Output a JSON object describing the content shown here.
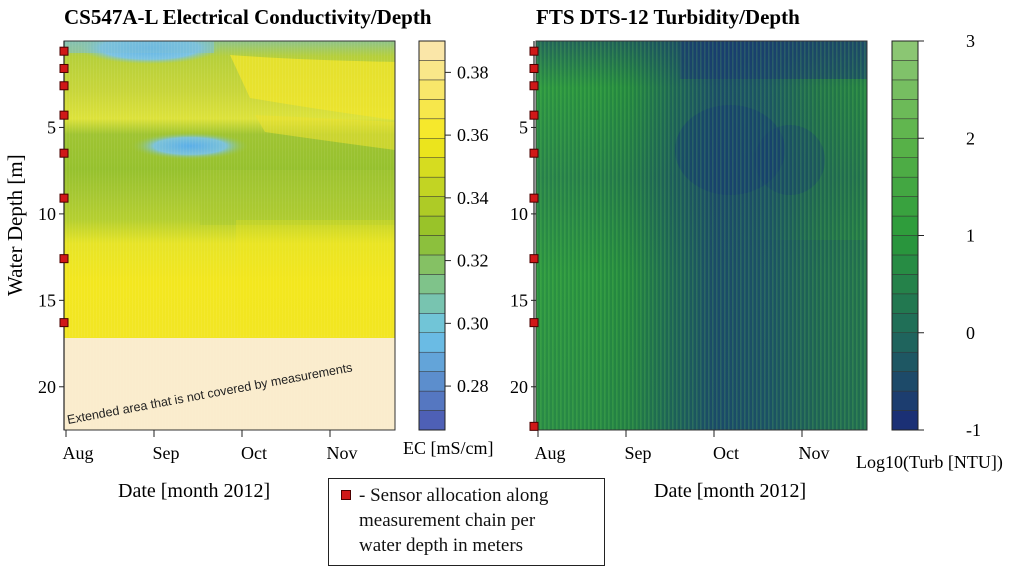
{
  "figure": {
    "left_title": "CS547A-L Electrical Conductivity/Depth",
    "right_title": "FTS DTS-12 Turbidity/Depth",
    "ylabel": "Water Depth [m]",
    "left_xlabel": "Date [month 2012]",
    "right_xlabel": "Date [month 2012]",
    "left_colorbar_label": "EC [mS/cm]",
    "right_colorbar_label": "Log10(Turb [NTU])",
    "annotation": "Extended area that is not covered by measurements",
    "legend_text": "- Sensor allocation along measurement chain per water depth in meters",
    "legend_lines": [
      "- Sensor allocation along",
      "measurement chain per",
      "water depth in meters"
    ],
    "colors": {
      "sensor_marker": "#d01818",
      "ec_low": "#4a55b0",
      "ec_mid": "#6ec6ea",
      "ec_green": "#8fbf2a",
      "ec_high": "#f5e81c",
      "turb_low": "#1a2a78",
      "turb_mid": "#2a9a3a",
      "turb_high": "#90c878"
    }
  },
  "chart_data": [
    {
      "type": "heatmap",
      "title": "CS547A-L Electrical Conductivity/Depth",
      "xlabel": "Date [month 2012]",
      "ylabel": "Water Depth [m]",
      "x_ticks": [
        "Aug",
        "Sep",
        "Oct",
        "Nov"
      ],
      "y_ticks": [
        5,
        10,
        15,
        20
      ],
      "ylim": [
        22.5,
        0
      ],
      "colorbar": {
        "label": "EC [mS/cm]",
        "min": 0.266,
        "max": 0.39,
        "ticks": [
          "0.28",
          "0.30",
          "0.32",
          "0.34",
          "0.36",
          "0.38"
        ],
        "colormap": [
          "#4a55b0",
          "#6ec6ea",
          "#8fbf2a",
          "#f5e81c",
          "#fbe6b8"
        ],
        "steps": 20
      },
      "sensor_depths": [
        0.3,
        1.3,
        2.3,
        4.0,
        6.2,
        8.8,
        12.3,
        16.0
      ],
      "unmeasured_below_depth": 16.8,
      "annotation": "Extended area that is not covered by measurements",
      "layers": [
        {
          "depth_range": [
            0,
            1.2
          ],
          "ec_mS_cm": 0.3
        },
        {
          "depth_range": [
            1.2,
            5.0
          ],
          "ec_mS_cm": 0.33
        },
        {
          "depth_range": [
            5.0,
            5.6
          ],
          "ec_mS_cm": 0.3
        },
        {
          "depth_range": [
            5.6,
            9.0
          ],
          "ec_mS_cm": 0.33
        },
        {
          "depth_range": [
            9.0,
            16.8
          ],
          "ec_mS_cm": 0.36
        }
      ]
    },
    {
      "type": "heatmap",
      "title": "FTS DTS-12 Turbidity/Depth",
      "xlabel": "Date [month 2012]",
      "ylabel": "Water Depth [m]",
      "x_ticks": [
        "Aug",
        "Sep",
        "Oct",
        "Nov"
      ],
      "y_ticks": [
        5,
        10,
        15,
        20
      ],
      "ylim": [
        22.5,
        0
      ],
      "colorbar": {
        "label": "Log10(Turb [NTU])",
        "min": -1,
        "max": 3,
        "ticks": [
          "-1",
          "0",
          "1",
          "2",
          "3"
        ],
        "colormap": [
          "#1a2a78",
          "#1f6a5a",
          "#2a9a3a",
          "#5cb44a",
          "#90c878"
        ],
        "steps": 20
      },
      "sensor_depths": [
        0.3,
        1.3,
        2.3,
        4.0,
        6.2,
        8.8,
        12.3,
        16.0,
        22.0
      ],
      "typical_log10_turbidity": 0.7,
      "low_turbidity_period": [
        "Oct",
        "Nov"
      ]
    }
  ]
}
